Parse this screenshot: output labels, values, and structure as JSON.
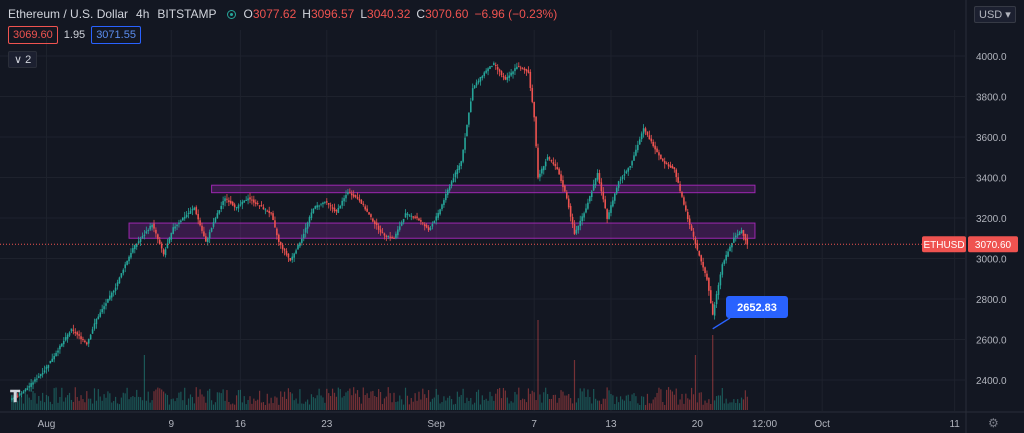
{
  "header": {
    "symbol": "Ethereum / U.S. Dollar",
    "interval": "4h",
    "exchange": "BITSTAMP",
    "ohlc": [
      {
        "k": "O",
        "v": "3077.62"
      },
      {
        "k": "H",
        "v": "3096.57"
      },
      {
        "k": "L",
        "v": "3040.32"
      },
      {
        "k": "C",
        "v": "3070.60"
      }
    ],
    "change": "−6.96 (−0.23%)",
    "sell": "3069.60",
    "spread": "1.95",
    "buy": "3071.55",
    "collapse": "∨ 2",
    "currency": "USD ▾"
  },
  "colors": {
    "background": "#131722",
    "up": "#26a69a",
    "down": "#ef5350",
    "zone": "#9c27b0",
    "price_line": "#ef5350",
    "callout": "#2962ff"
  },
  "chart_data": {
    "type": "candlestick",
    "symbol": "ETHUSD",
    "interval": "4h",
    "price_axis": {
      "ticks": [
        2400,
        2600,
        2800,
        3000,
        3200,
        3400,
        3600,
        3800,
        4000
      ],
      "side": "right"
    },
    "time_axis": {
      "ticks": [
        "Aug",
        "9",
        "16",
        "23",
        "Sep",
        "7",
        "13",
        "20",
        "12:00",
        "Oct",
        "11"
      ]
    },
    "keypoints": [
      {
        "i": 0,
        "p": 2300
      },
      {
        "i": 8,
        "p": 2350
      },
      {
        "i": 18,
        "p": 2450
      },
      {
        "i": 25,
        "p": 2550
      },
      {
        "i": 32,
        "p": 2650
      },
      {
        "i": 40,
        "p": 2580
      },
      {
        "i": 45,
        "p": 2700
      },
      {
        "i": 50,
        "p": 2780
      },
      {
        "i": 55,
        "p": 2860
      },
      {
        "i": 60,
        "p": 2970
      },
      {
        "i": 64,
        "p": 3050
      },
      {
        "i": 70,
        "p": 3120
      },
      {
        "i": 74,
        "p": 3170
      },
      {
        "i": 80,
        "p": 3020
      },
      {
        "i": 85,
        "p": 3150
      },
      {
        "i": 90,
        "p": 3200
      },
      {
        "i": 96,
        "p": 3250
      },
      {
        "i": 102,
        "p": 3080
      },
      {
        "i": 107,
        "p": 3200
      },
      {
        "i": 112,
        "p": 3300
      },
      {
        "i": 118,
        "p": 3250
      },
      {
        "i": 124,
        "p": 3300
      },
      {
        "i": 130,
        "p": 3260
      },
      {
        "i": 136,
        "p": 3220
      },
      {
        "i": 140,
        "p": 3080
      },
      {
        "i": 146,
        "p": 2990
      },
      {
        "i": 152,
        "p": 3100
      },
      {
        "i": 158,
        "p": 3250
      },
      {
        "i": 164,
        "p": 3280
      },
      {
        "i": 170,
        "p": 3230
      },
      {
        "i": 176,
        "p": 3330
      },
      {
        "i": 182,
        "p": 3290
      },
      {
        "i": 188,
        "p": 3200
      },
      {
        "i": 194,
        "p": 3120
      },
      {
        "i": 200,
        "p": 3100
      },
      {
        "i": 206,
        "p": 3220
      },
      {
        "i": 212,
        "p": 3200
      },
      {
        "i": 218,
        "p": 3140
      },
      {
        "i": 223,
        "p": 3220
      },
      {
        "i": 229,
        "p": 3360
      },
      {
        "i": 235,
        "p": 3480
      },
      {
        "i": 241,
        "p": 3840
      },
      {
        "i": 248,
        "p": 3930
      },
      {
        "i": 252,
        "p": 3960
      },
      {
        "i": 258,
        "p": 3880
      },
      {
        "i": 264,
        "p": 3950
      },
      {
        "i": 270,
        "p": 3920
      },
      {
        "i": 273,
        "p": 3700
      },
      {
        "i": 275,
        "p": 3400
      },
      {
        "i": 280,
        "p": 3500
      },
      {
        "i": 285,
        "p": 3440
      },
      {
        "i": 290,
        "p": 3300
      },
      {
        "i": 294,
        "p": 3120
      },
      {
        "i": 300,
        "p": 3250
      },
      {
        "i": 306,
        "p": 3420
      },
      {
        "i": 311,
        "p": 3200
      },
      {
        "i": 317,
        "p": 3380
      },
      {
        "i": 323,
        "p": 3460
      },
      {
        "i": 330,
        "p": 3640
      },
      {
        "i": 335,
        "p": 3560
      },
      {
        "i": 340,
        "p": 3480
      },
      {
        "i": 346,
        "p": 3440
      },
      {
        "i": 350,
        "p": 3300
      },
      {
        "i": 353,
        "p": 3200
      },
      {
        "i": 357,
        "p": 3070
      },
      {
        "i": 363,
        "p": 2900
      },
      {
        "i": 366,
        "p": 2720
      },
      {
        "i": 371,
        "p": 2970
      },
      {
        "i": 377,
        "p": 3100
      },
      {
        "i": 381,
        "p": 3140
      },
      {
        "i": 384,
        "p": 3070
      }
    ],
    "resistance_zone": {
      "low": 3325,
      "high": 3362,
      "from_index": 105,
      "to_index": 388
    },
    "support_zone": {
      "low": 3100,
      "high": 3175,
      "from_index": 62,
      "to_index": 388
    },
    "low_label": {
      "text": "2652.83",
      "index": 366,
      "price": 2652.83
    },
    "last_price": {
      "label": "ETHUSD",
      "value": "3070.60",
      "price": 3070.6
    },
    "volume_spikes": [
      {
        "i": 70,
        "v": 0.55
      },
      {
        "i": 275,
        "v": 0.9
      },
      {
        "i": 294,
        "v": 0.5
      },
      {
        "i": 357,
        "v": 0.55
      },
      {
        "i": 366,
        "v": 0.75
      }
    ]
  }
}
